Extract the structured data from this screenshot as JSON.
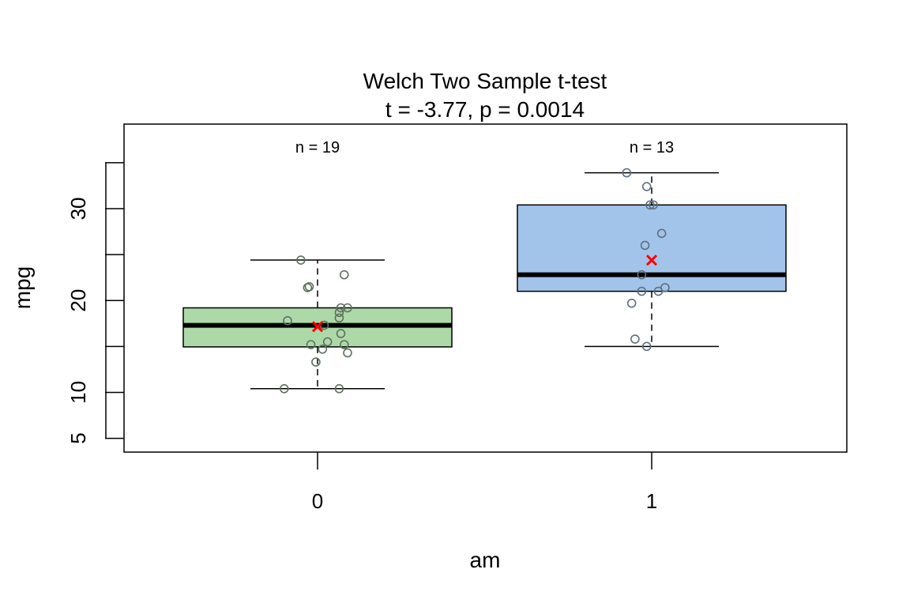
{
  "chart_data": {
    "type": "box",
    "title": "Welch Two Sample t-test",
    "subtitle": "t = -3.77, p = 0.0014",
    "xlabel": "am",
    "ylabel": "mpg",
    "ylim": [
      3.5,
      39.2
    ],
    "yticks": [
      5,
      10,
      15,
      20,
      25,
      30,
      35
    ],
    "yticklabels": [
      "5",
      "10",
      "",
      "20",
      "",
      "30",
      ""
    ],
    "grid": false,
    "groups": [
      {
        "name": "0",
        "n_label": "n = 19",
        "color": "#add9a9",
        "whisker_low": 10.4,
        "q1": 14.95,
        "median": 17.3,
        "q3": 19.2,
        "whisker_high": 24.4,
        "mean": 17.15,
        "points": [
          {
            "jitter": -0.05,
            "y": 24.4
          },
          {
            "jitter": -0.03,
            "y": 21.4
          },
          {
            "jitter": -0.025,
            "y": 21.5
          },
          {
            "jitter": 0.08,
            "y": 22.8
          },
          {
            "jitter": -0.09,
            "y": 17.8
          },
          {
            "jitter": 0.02,
            "y": 17.3
          },
          {
            "jitter": 0.07,
            "y": 19.2
          },
          {
            "jitter": 0.09,
            "y": 19.2
          },
          {
            "jitter": 0.065,
            "y": 18.7
          },
          {
            "jitter": 0.065,
            "y": 18.1
          },
          {
            "jitter": 0.07,
            "y": 16.4
          },
          {
            "jitter": 0.03,
            "y": 15.5
          },
          {
            "jitter": -0.02,
            "y": 15.2
          },
          {
            "jitter": 0.08,
            "y": 15.2
          },
          {
            "jitter": 0.015,
            "y": 14.7
          },
          {
            "jitter": 0.09,
            "y": 14.3
          },
          {
            "jitter": -0.005,
            "y": 13.3
          },
          {
            "jitter": -0.1,
            "y": 10.4
          },
          {
            "jitter": 0.065,
            "y": 10.4
          }
        ]
      },
      {
        "name": "1",
        "n_label": "n = 13",
        "color": "#a3c4ea",
        "whisker_low": 15.0,
        "q1": 21.0,
        "median": 22.8,
        "q3": 30.4,
        "whisker_high": 33.9,
        "mean": 24.39,
        "points": [
          {
            "jitter": -0.075,
            "y": 33.9
          },
          {
            "jitter": -0.015,
            "y": 32.4
          },
          {
            "jitter": -0.005,
            "y": 30.4
          },
          {
            "jitter": 0.005,
            "y": 30.4
          },
          {
            "jitter": 0.03,
            "y": 27.3
          },
          {
            "jitter": -0.02,
            "y": 26.0
          },
          {
            "jitter": -0.03,
            "y": 22.8
          },
          {
            "jitter": 0.04,
            "y": 21.4
          },
          {
            "jitter": -0.03,
            "y": 21.0
          },
          {
            "jitter": 0.02,
            "y": 21.0
          },
          {
            "jitter": -0.06,
            "y": 19.7
          },
          {
            "jitter": -0.05,
            "y": 15.8
          },
          {
            "jitter": -0.015,
            "y": 15.0
          }
        ]
      }
    ],
    "colors": {
      "point_stroke": "#5f705f",
      "point_stroke_2": "#5f6f80",
      "mean_marker": "#ff0000",
      "median_line": "#000000"
    }
  }
}
